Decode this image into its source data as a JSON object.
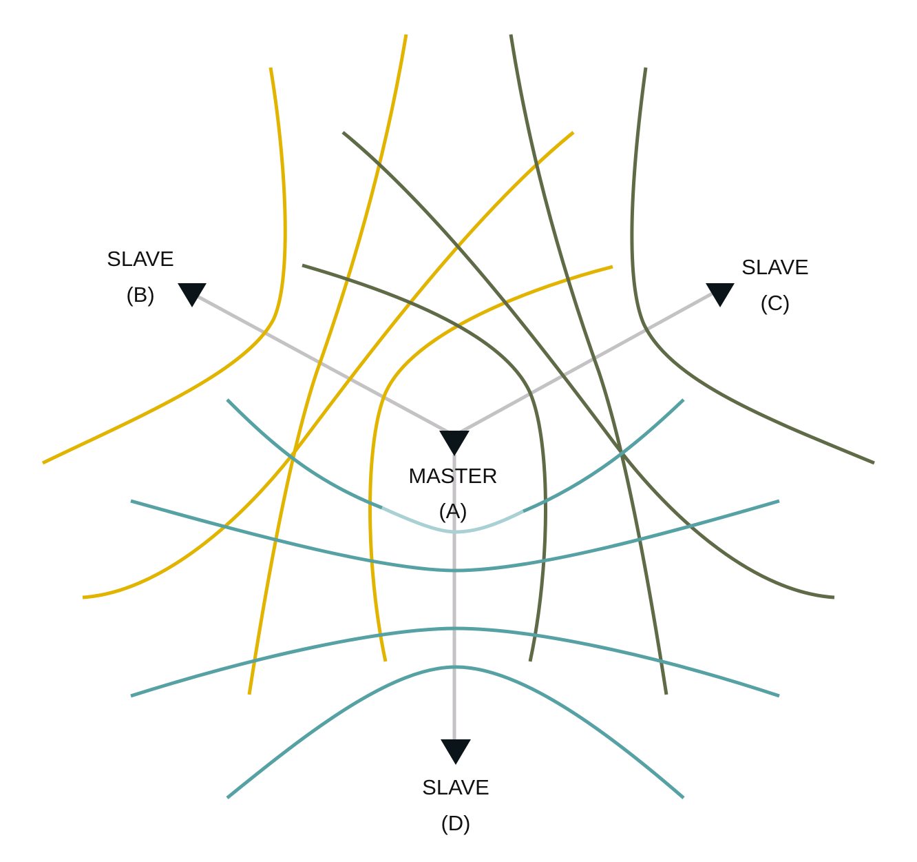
{
  "colors": {
    "yellow": "#e1b400",
    "olive": "#5f6a46",
    "teal": "#56a1a4",
    "teal_light": "#a9d0d3",
    "baseline": "#c4c2c4",
    "station": "#0b1419"
  },
  "stations": {
    "master": {
      "line1": "MASTER",
      "line2": "(A)"
    },
    "slave_b": {
      "line1": "SLAVE",
      "line2": "(B)"
    },
    "slave_c": {
      "line1": "SLAVE",
      "line2": "(C)"
    },
    "slave_d": {
      "line1": "SLAVE",
      "line2": "(D)"
    }
  }
}
